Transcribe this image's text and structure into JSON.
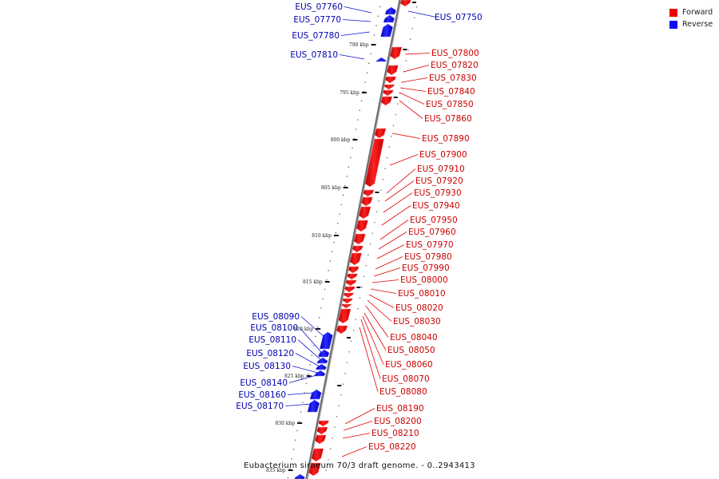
{
  "legend": [
    {
      "label": "Forward",
      "color": "#ee0000"
    },
    {
      "label": "Reverse",
      "color": "#1010ee"
    }
  ],
  "caption": "Eubacterium siraeum 70/3 draft genome. - 0..2943413",
  "ruler": [
    "790 kbp",
    "795 kbp",
    "800 kbp",
    "805 kbp",
    "810 kbp",
    "815 kbp",
    "820 kbp",
    "825 kbp",
    "830 kbp",
    "835 kbp"
  ],
  "forward_genes": [
    "EUS_07800",
    "EUS_07820",
    "EUS_07830",
    "EUS_07840",
    "EUS_07850",
    "EUS_07860",
    "EUS_07890",
    "EUS_07900",
    "EUS_07910",
    "EUS_07920",
    "EUS_07930",
    "EUS_07940",
    "EUS_07950",
    "EUS_07960",
    "EUS_07970",
    "EUS_07980",
    "EUS_07990",
    "EUS_08000",
    "EUS_08010",
    "EUS_08020",
    "EUS_08030",
    "EUS_08040",
    "EUS_08050",
    "EUS_08060",
    "EUS_08070",
    "EUS_08080",
    "EUS_08190",
    "EUS_08200",
    "EUS_08210",
    "EUS_08220"
  ],
  "reverse_genes": [
    "EUS_07760",
    "EUS_07770",
    "EUS_07780",
    "EUS_07810",
    "EUS_08090",
    "EUS_08100",
    "EUS_08110",
    "EUS_08120",
    "EUS_08130",
    "EUS_08140",
    "EUS_08160",
    "EUS_08170"
  ],
  "top_right_gene": "EUS_07750"
}
